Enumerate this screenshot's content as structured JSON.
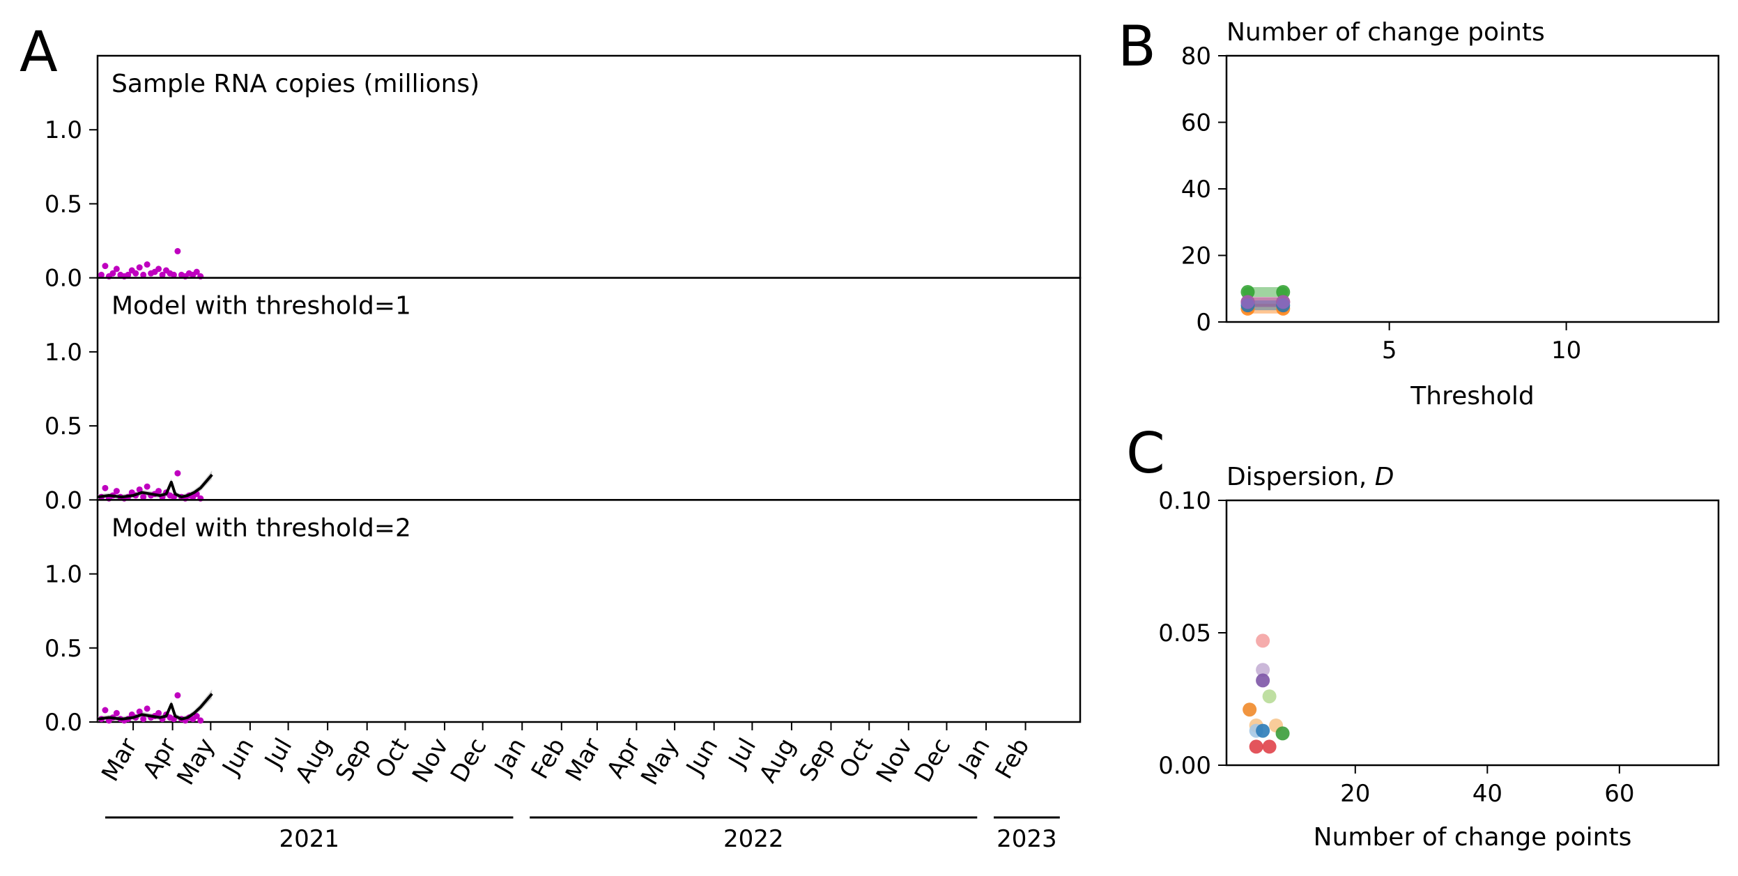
{
  "panel_letters": [
    "A",
    "B",
    "C"
  ],
  "chart_data": [
    {
      "id": "A",
      "type": "scatter",
      "subtype": "stacked time-series panels",
      "x_range": [
        "2021-02-01",
        "2023-03-16"
      ],
      "y_range": [
        0,
        1.5
      ],
      "yticks": [
        "0.0",
        "0.5",
        "1.0"
      ],
      "month_ticks": [
        "Mar",
        "Apr",
        "May",
        "Jun",
        "Jul",
        "Aug",
        "Sep",
        "Oct",
        "Nov",
        "Dec",
        "Jan",
        "Feb",
        "Mar",
        "Apr",
        "May",
        "Jun",
        "Jul",
        "Aug",
        "Sep",
        "Oct",
        "Nov",
        "Dec",
        "Jan",
        "Feb"
      ],
      "month_dates": [
        "2021-03-01",
        "2021-04-01",
        "2021-05-01",
        "2021-06-01",
        "2021-07-01",
        "2021-08-01",
        "2021-09-01",
        "2021-10-01",
        "2021-11-01",
        "2021-12-01",
        "2022-01-01",
        "2022-02-01",
        "2022-03-01",
        "2022-04-01",
        "2022-05-01",
        "2022-06-01",
        "2022-07-01",
        "2022-08-01",
        "2022-09-01",
        "2022-10-01",
        "2022-11-01",
        "2022-12-01",
        "2023-01-01",
        "2023-02-01"
      ],
      "year_labels": [
        {
          "label": "2021",
          "start": "2021-02-07",
          "end": "2021-12-25"
        },
        {
          "label": "2022",
          "start": "2022-01-07",
          "end": "2022-12-25"
        },
        {
          "label": "2023",
          "start": "2023-01-07",
          "end": "2023-02-28"
        }
      ],
      "samples": {
        "color": "#bf00bf",
        "x": [
          "2021-02-04",
          "2021-02-07",
          "2021-02-10",
          "2021-02-13",
          "2021-02-16",
          "2021-02-19",
          "2021-02-22",
          "2021-02-25",
          "2021-02-28",
          "2021-03-03",
          "2021-03-06",
          "2021-03-09",
          "2021-03-12",
          "2021-03-15",
          "2021-03-18",
          "2021-03-21",
          "2021-03-24",
          "2021-03-27",
          "2021-03-30",
          "2021-04-02",
          "2021-04-05",
          "2021-04-08",
          "2021-04-11",
          "2021-04-14",
          "2021-04-17",
          "2021-04-20",
          "2021-04-23"
        ],
        "y": [
          0.02,
          0.08,
          0.01,
          0.03,
          0.06,
          0.02,
          0.01,
          0.02,
          0.05,
          0.03,
          0.07,
          0.02,
          0.09,
          0.03,
          0.04,
          0.06,
          0.02,
          0.05,
          0.03,
          0.02,
          0.18,
          0.02,
          0.01,
          0.03,
          0.02,
          0.04,
          0.01
        ]
      },
      "panels": [
        {
          "title": "Sample RNA copies (millions)",
          "model": null
        },
        {
          "title": "Model with threshold=1",
          "model": {
            "color": "#000000",
            "band_color": "#b0b0b0",
            "x": [
              "2021-02-01",
              "2021-02-10",
              "2021-02-20",
              "2021-03-01",
              "2021-03-08",
              "2021-03-15",
              "2021-03-22",
              "2021-03-27",
              "2021-03-31",
              "2021-04-03",
              "2021-04-08",
              "2021-04-13",
              "2021-04-18",
              "2021-04-23",
              "2021-04-28",
              "2021-05-02"
            ],
            "y": [
              0.02,
              0.03,
              0.02,
              0.03,
              0.05,
              0.04,
              0.03,
              0.04,
              0.12,
              0.04,
              0.02,
              0.03,
              0.05,
              0.08,
              0.13,
              0.17
            ]
          }
        },
        {
          "title": "Model with threshold=2",
          "model": {
            "color": "#000000",
            "band_color": "#b0b0b0",
            "x": [
              "2021-02-01",
              "2021-02-10",
              "2021-02-20",
              "2021-03-01",
              "2021-03-08",
              "2021-03-15",
              "2021-03-22",
              "2021-03-27",
              "2021-03-31",
              "2021-04-03",
              "2021-04-08",
              "2021-04-13",
              "2021-04-18",
              "2021-04-23",
              "2021-04-28",
              "2021-05-02"
            ],
            "y": [
              0.02,
              0.03,
              0.02,
              0.03,
              0.05,
              0.04,
              0.03,
              0.04,
              0.12,
              0.04,
              0.02,
              0.03,
              0.06,
              0.1,
              0.15,
              0.19
            ]
          }
        }
      ]
    },
    {
      "id": "B",
      "type": "line",
      "title": "Number of change points",
      "xlabel": "Threshold",
      "xlim": [
        0.4,
        14.3
      ],
      "ylim": [
        0,
        80
      ],
      "xticks": [
        5,
        10
      ],
      "yticks": [
        0,
        20,
        40,
        60,
        80
      ],
      "series": [
        {
          "color": "#2ca02c",
          "x": [
            1,
            2
          ],
          "y": [
            9,
            9
          ]
        },
        {
          "color": "#ff7f0e",
          "x": [
            1,
            2
          ],
          "y": [
            4,
            4
          ]
        },
        {
          "color": "#d62728",
          "x": [
            1,
            2
          ],
          "y": [
            6,
            6
          ]
        },
        {
          "color": "#1f77b4",
          "x": [
            1,
            2
          ],
          "y": [
            5,
            5
          ]
        },
        {
          "color": "#9467bd",
          "x": [
            1,
            2
          ],
          "y": [
            6,
            6
          ]
        }
      ]
    },
    {
      "id": "C",
      "type": "scatter",
      "title": "Dispersion, ",
      "title_italic": "D",
      "xlabel": "Number of change points",
      "xlim": [
        0.5,
        75
      ],
      "ylim": [
        0,
        0.1
      ],
      "xticks": [
        20,
        40,
        60
      ],
      "yticks": [
        "0.00",
        "0.05",
        "0.10"
      ],
      "points": [
        {
          "x": 6,
          "y": 0.047,
          "color": "#f4a3a3"
        },
        {
          "x": 6,
          "y": 0.036,
          "color": "#c5b0d5"
        },
        {
          "x": 6,
          "y": 0.032,
          "color": "#7d55a6"
        },
        {
          "x": 7,
          "y": 0.026,
          "color": "#b8dc98"
        },
        {
          "x": 4,
          "y": 0.021,
          "color": "#f08a2a"
        },
        {
          "x": 5,
          "y": 0.015,
          "color": "#f7c78f"
        },
        {
          "x": 8,
          "y": 0.015,
          "color": "#f7c78f"
        },
        {
          "x": 5,
          "y": 0.013,
          "color": "#a6c8e4"
        },
        {
          "x": 6,
          "y": 0.013,
          "color": "#2e7cb8"
        },
        {
          "x": 9,
          "y": 0.012,
          "color": "#3a9c3a"
        },
        {
          "x": 5,
          "y": 0.007,
          "color": "#e0434a"
        },
        {
          "x": 7,
          "y": 0.007,
          "color": "#e0434a"
        }
      ]
    }
  ]
}
